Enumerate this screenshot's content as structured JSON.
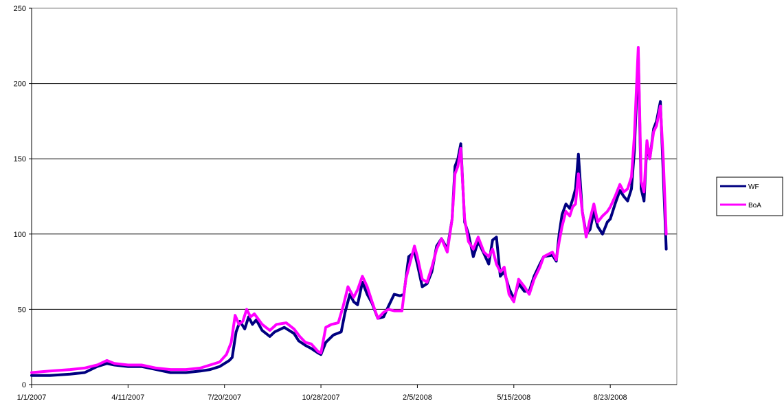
{
  "chart_data": {
    "type": "line",
    "title": "",
    "xlabel": "",
    "ylabel": "",
    "ylim": [
      0,
      250
    ],
    "yticks": [
      0,
      50,
      100,
      150,
      200,
      250
    ],
    "xlim": [
      "2007-01-01",
      "2008-10-31"
    ],
    "xticks": [
      "1/1/2007",
      "4/11/2007",
      "7/20/2007",
      "10/28/2007",
      "2/5/2008",
      "5/15/2008",
      "8/23/2008"
    ],
    "grid": "horizontal",
    "legend_position": "right",
    "series": [
      {
        "name": "WF",
        "color": "#000080",
        "points": [
          [
            "2007-01-01",
            6
          ],
          [
            "2007-01-20",
            6
          ],
          [
            "2007-02-10",
            7
          ],
          [
            "2007-02-25",
            8
          ],
          [
            "2007-03-10",
            12
          ],
          [
            "2007-03-20",
            14
          ],
          [
            "2007-03-28",
            13
          ],
          [
            "2007-04-11",
            12
          ],
          [
            "2007-04-25",
            12
          ],
          [
            "2007-05-10",
            10
          ],
          [
            "2007-05-25",
            8
          ],
          [
            "2007-06-10",
            8
          ],
          [
            "2007-06-25",
            9
          ],
          [
            "2007-07-05",
            10
          ],
          [
            "2007-07-15",
            12
          ],
          [
            "2007-07-25",
            16
          ],
          [
            "2007-07-28",
            18
          ],
          [
            "2007-08-01",
            35
          ],
          [
            "2007-08-05",
            42
          ],
          [
            "2007-08-10",
            37
          ],
          [
            "2007-08-14",
            45
          ],
          [
            "2007-08-18",
            40
          ],
          [
            "2007-08-22",
            43
          ],
          [
            "2007-08-28",
            36
          ],
          [
            "2007-09-05",
            32
          ],
          [
            "2007-09-10",
            35
          ],
          [
            "2007-09-20",
            38
          ],
          [
            "2007-09-30",
            34
          ],
          [
            "2007-10-05",
            29
          ],
          [
            "2007-10-12",
            26
          ],
          [
            "2007-10-18",
            24
          ],
          [
            "2007-10-25",
            21
          ],
          [
            "2007-10-28",
            20
          ],
          [
            "2007-11-02",
            28
          ],
          [
            "2007-11-10",
            33
          ],
          [
            "2007-11-18",
            35
          ],
          [
            "2007-11-22",
            48
          ],
          [
            "2007-11-27",
            60
          ],
          [
            "2007-12-01",
            55
          ],
          [
            "2007-12-05",
            53
          ],
          [
            "2007-12-10",
            68
          ],
          [
            "2007-12-15",
            60
          ],
          [
            "2007-12-20",
            54
          ],
          [
            "2007-12-26",
            44
          ],
          [
            "2008-01-01",
            45
          ],
          [
            "2008-01-06",
            52
          ],
          [
            "2008-01-12",
            60
          ],
          [
            "2008-01-18",
            59
          ],
          [
            "2008-01-22",
            60
          ],
          [
            "2008-01-27",
            85
          ],
          [
            "2008-02-02",
            88
          ],
          [
            "2008-02-05",
            80
          ],
          [
            "2008-02-10",
            65
          ],
          [
            "2008-02-15",
            67
          ],
          [
            "2008-02-20",
            75
          ],
          [
            "2008-02-25",
            92
          ],
          [
            "2008-03-01",
            97
          ],
          [
            "2008-03-07",
            90
          ],
          [
            "2008-03-12",
            110
          ],
          [
            "2008-03-15",
            145
          ],
          [
            "2008-03-18",
            150
          ],
          [
            "2008-03-21",
            160
          ],
          [
            "2008-03-25",
            108
          ],
          [
            "2008-03-29",
            100
          ],
          [
            "2008-04-03",
            85
          ],
          [
            "2008-04-08",
            95
          ],
          [
            "2008-04-14",
            87
          ],
          [
            "2008-04-19",
            80
          ],
          [
            "2008-04-23",
            96
          ],
          [
            "2008-04-27",
            98
          ],
          [
            "2008-05-01",
            72
          ],
          [
            "2008-05-05",
            75
          ],
          [
            "2008-05-10",
            64
          ],
          [
            "2008-05-15",
            57
          ],
          [
            "2008-05-20",
            67
          ],
          [
            "2008-05-26",
            62
          ],
          [
            "2008-05-31",
            62
          ],
          [
            "2008-06-05",
            72
          ],
          [
            "2008-06-11",
            80
          ],
          [
            "2008-06-15",
            85
          ],
          [
            "2008-06-24",
            86
          ],
          [
            "2008-06-28",
            82
          ],
          [
            "2008-07-01",
            100
          ],
          [
            "2008-07-04",
            113
          ],
          [
            "2008-07-08",
            120
          ],
          [
            "2008-07-12",
            117
          ],
          [
            "2008-07-15",
            123
          ],
          [
            "2008-07-18",
            130
          ],
          [
            "2008-07-21",
            153
          ],
          [
            "2008-07-25",
            115
          ],
          [
            "2008-07-29",
            100
          ],
          [
            "2008-08-02",
            103
          ],
          [
            "2008-08-06",
            115
          ],
          [
            "2008-08-10",
            105
          ],
          [
            "2008-08-15",
            100
          ],
          [
            "2008-08-20",
            108
          ],
          [
            "2008-08-23",
            110
          ],
          [
            "2008-08-28",
            120
          ],
          [
            "2008-09-02",
            129
          ],
          [
            "2008-09-06",
            125
          ],
          [
            "2008-09-10",
            122
          ],
          [
            "2008-09-14",
            130
          ],
          [
            "2008-09-17",
            155
          ],
          [
            "2008-09-21",
            220
          ],
          [
            "2008-09-24",
            130
          ],
          [
            "2008-09-27",
            122
          ],
          [
            "2008-09-30",
            160
          ],
          [
            "2008-10-03",
            150
          ],
          [
            "2008-10-07",
            170
          ],
          [
            "2008-10-10",
            175
          ],
          [
            "2008-10-14",
            188
          ],
          [
            "2008-10-17",
            140
          ],
          [
            "2008-10-20",
            90
          ]
        ]
      },
      {
        "name": "BoA",
        "color": "#ff00ff",
        "points": [
          [
            "2007-01-01",
            8
          ],
          [
            "2007-01-20",
            9
          ],
          [
            "2007-02-10",
            10
          ],
          [
            "2007-02-25",
            11
          ],
          [
            "2007-03-10",
            13
          ],
          [
            "2007-03-20",
            16
          ],
          [
            "2007-03-28",
            14
          ],
          [
            "2007-04-11",
            13
          ],
          [
            "2007-04-25",
            13
          ],
          [
            "2007-05-10",
            11
          ],
          [
            "2007-05-25",
            10
          ],
          [
            "2007-06-10",
            10
          ],
          [
            "2007-06-25",
            11
          ],
          [
            "2007-07-05",
            13
          ],
          [
            "2007-07-15",
            15
          ],
          [
            "2007-07-22",
            20
          ],
          [
            "2007-07-27",
            28
          ],
          [
            "2007-07-31",
            46
          ],
          [
            "2007-08-04",
            40
          ],
          [
            "2007-08-08",
            42
          ],
          [
            "2007-08-12",
            50
          ],
          [
            "2007-08-16",
            45
          ],
          [
            "2007-08-20",
            47
          ],
          [
            "2007-08-28",
            40
          ],
          [
            "2007-09-05",
            36
          ],
          [
            "2007-09-12",
            40
          ],
          [
            "2007-09-22",
            41
          ],
          [
            "2007-09-30",
            37
          ],
          [
            "2007-10-06",
            32
          ],
          [
            "2007-10-12",
            28
          ],
          [
            "2007-10-18",
            27
          ],
          [
            "2007-10-25",
            22
          ],
          [
            "2007-10-28",
            21
          ],
          [
            "2007-11-02",
            38
          ],
          [
            "2007-11-08",
            40
          ],
          [
            "2007-11-15",
            41
          ],
          [
            "2007-11-20",
            52
          ],
          [
            "2007-11-25",
            65
          ],
          [
            "2007-12-01",
            58
          ],
          [
            "2007-12-05",
            63
          ],
          [
            "2007-12-10",
            72
          ],
          [
            "2007-12-15",
            65
          ],
          [
            "2007-12-20",
            55
          ],
          [
            "2007-12-26",
            44
          ],
          [
            "2008-01-01",
            48
          ],
          [
            "2008-01-06",
            50
          ],
          [
            "2008-01-12",
            49
          ],
          [
            "2008-01-20",
            49
          ],
          [
            "2008-01-24",
            70
          ],
          [
            "2008-01-28",
            80
          ],
          [
            "2008-02-02",
            92
          ],
          [
            "2008-02-05",
            85
          ],
          [
            "2008-02-10",
            70
          ],
          [
            "2008-02-15",
            68
          ],
          [
            "2008-02-20",
            78
          ],
          [
            "2008-02-25",
            90
          ],
          [
            "2008-03-01",
            97
          ],
          [
            "2008-03-07",
            88
          ],
          [
            "2008-03-12",
            110
          ],
          [
            "2008-03-15",
            140
          ],
          [
            "2008-03-18",
            145
          ],
          [
            "2008-03-21",
            157
          ],
          [
            "2008-03-25",
            110
          ],
          [
            "2008-03-29",
            95
          ],
          [
            "2008-04-03",
            90
          ],
          [
            "2008-04-08",
            98
          ],
          [
            "2008-04-14",
            88
          ],
          [
            "2008-04-19",
            85
          ],
          [
            "2008-04-23",
            90
          ],
          [
            "2008-04-27",
            80
          ],
          [
            "2008-05-01",
            75
          ],
          [
            "2008-05-05",
            78
          ],
          [
            "2008-05-10",
            60
          ],
          [
            "2008-05-15",
            55
          ],
          [
            "2008-05-20",
            70
          ],
          [
            "2008-05-26",
            65
          ],
          [
            "2008-05-31",
            60
          ],
          [
            "2008-06-05",
            70
          ],
          [
            "2008-06-11",
            78
          ],
          [
            "2008-06-15",
            85
          ],
          [
            "2008-06-24",
            88
          ],
          [
            "2008-06-28",
            83
          ],
          [
            "2008-07-01",
            95
          ],
          [
            "2008-07-04",
            105
          ],
          [
            "2008-07-08",
            115
          ],
          [
            "2008-07-12",
            112
          ],
          [
            "2008-07-15",
            118
          ],
          [
            "2008-07-18",
            120
          ],
          [
            "2008-07-21",
            140
          ],
          [
            "2008-07-25",
            115
          ],
          [
            "2008-07-29",
            98
          ],
          [
            "2008-08-02",
            110
          ],
          [
            "2008-08-06",
            120
          ],
          [
            "2008-08-10",
            108
          ],
          [
            "2008-08-15",
            112
          ],
          [
            "2008-08-20",
            115
          ],
          [
            "2008-08-23",
            118
          ],
          [
            "2008-08-28",
            125
          ],
          [
            "2008-09-02",
            133
          ],
          [
            "2008-09-06",
            128
          ],
          [
            "2008-09-10",
            130
          ],
          [
            "2008-09-14",
            138
          ],
          [
            "2008-09-17",
            165
          ],
          [
            "2008-09-21",
            224
          ],
          [
            "2008-09-24",
            135
          ],
          [
            "2008-09-27",
            128
          ],
          [
            "2008-09-30",
            162
          ],
          [
            "2008-10-03",
            150
          ],
          [
            "2008-10-07",
            168
          ],
          [
            "2008-10-10",
            172
          ],
          [
            "2008-10-14",
            185
          ],
          [
            "2008-10-17",
            150
          ],
          [
            "2008-10-20",
            100
          ]
        ]
      }
    ]
  }
}
